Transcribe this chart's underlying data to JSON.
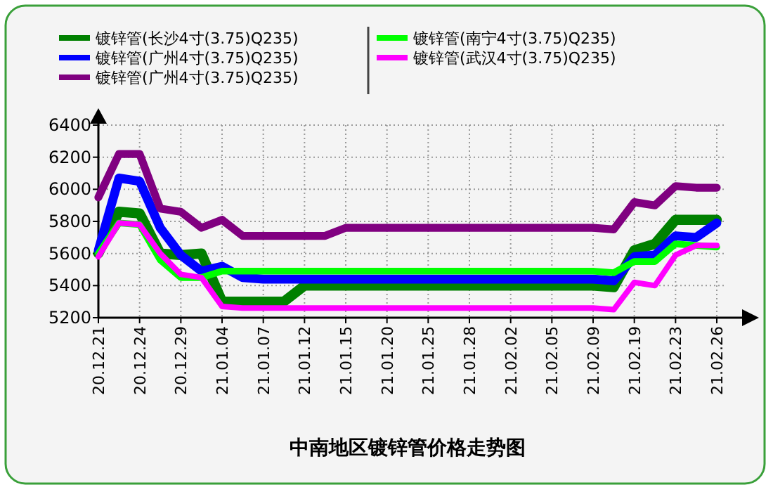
{
  "chart_data": {
    "type": "line",
    "title": "中南地区镀锌管价格走势图",
    "categories": [
      "20.12.21",
      null,
      "20.12.24",
      null,
      "20.12.29",
      null,
      "21.01.04",
      null,
      "21.01.07",
      null,
      "21.01.12",
      null,
      "21.01.15",
      null,
      "21.01.20",
      null,
      "21.01.25",
      null,
      "21.01.28",
      null,
      "21.02.02",
      null,
      "21.02.05",
      null,
      "21.02.09",
      null,
      "21.02.19",
      null,
      "21.02.23",
      null,
      "21.02.26"
    ],
    "series": [
      {
        "name": "镀锌管(长沙4寸(3.75)Q235)",
        "color": "#008000",
        "values": [
          5600,
          5860,
          5850,
          5600,
          5590,
          5600,
          5300,
          5300,
          5300,
          5300,
          5400,
          5400,
          5400,
          5400,
          5400,
          5400,
          5400,
          5400,
          5400,
          5400,
          5400,
          5400,
          5400,
          5400,
          5400,
          5390,
          5620,
          5660,
          5810,
          5810,
          5810
        ]
      },
      {
        "name": "镀锌管(广州4寸(3.75)Q235)",
        "color": "#0000ff",
        "values": [
          5620,
          6070,
          6050,
          5760,
          5590,
          5490,
          5520,
          5450,
          5440,
          5440,
          5440,
          5440,
          5440,
          5440,
          5440,
          5440,
          5440,
          5440,
          5440,
          5440,
          5440,
          5440,
          5440,
          5440,
          5440,
          5430,
          5580,
          5590,
          5710,
          5700,
          5790
        ]
      },
      {
        "name": "镀锌管(广州4寸(3.75)Q235)",
        "color": "#800080",
        "values": [
          5950,
          6220,
          6220,
          5880,
          5860,
          5760,
          5810,
          5710,
          5710,
          5710,
          5710,
          5710,
          5760,
          5760,
          5760,
          5760,
          5760,
          5760,
          5760,
          5760,
          5760,
          5760,
          5760,
          5760,
          5760,
          5750,
          5920,
          5900,
          6020,
          6010,
          6010
        ]
      },
      {
        "name": "镀锌管(南宁4寸(3.75)Q235)",
        "color": "#00ff00",
        "values": [
          5600,
          5790,
          5780,
          5560,
          5450,
          5450,
          5490,
          5490,
          5490,
          5490,
          5490,
          5490,
          5490,
          5490,
          5490,
          5490,
          5490,
          5490,
          5490,
          5490,
          5490,
          5490,
          5490,
          5490,
          5490,
          5480,
          5550,
          5550,
          5660,
          5650,
          5640
        ]
      },
      {
        "name": "镀锌管(武汉4寸(3.75)Q235)",
        "color": "#ff00ff",
        "values": [
          5580,
          5790,
          5780,
          5600,
          5470,
          5450,
          5270,
          5260,
          5260,
          5260,
          5260,
          5260,
          5260,
          5260,
          5260,
          5260,
          5260,
          5260,
          5260,
          5260,
          5260,
          5260,
          5260,
          5260,
          5260,
          5250,
          5420,
          5400,
          5590,
          5650,
          5650
        ]
      }
    ],
    "ylim": [
      5200,
      6400
    ],
    "yticks": [
      5200,
      5400,
      5600,
      5800,
      6000,
      6200,
      6400
    ],
    "grid": true,
    "legend": "top",
    "line_style": "solid",
    "marker": "none"
  }
}
